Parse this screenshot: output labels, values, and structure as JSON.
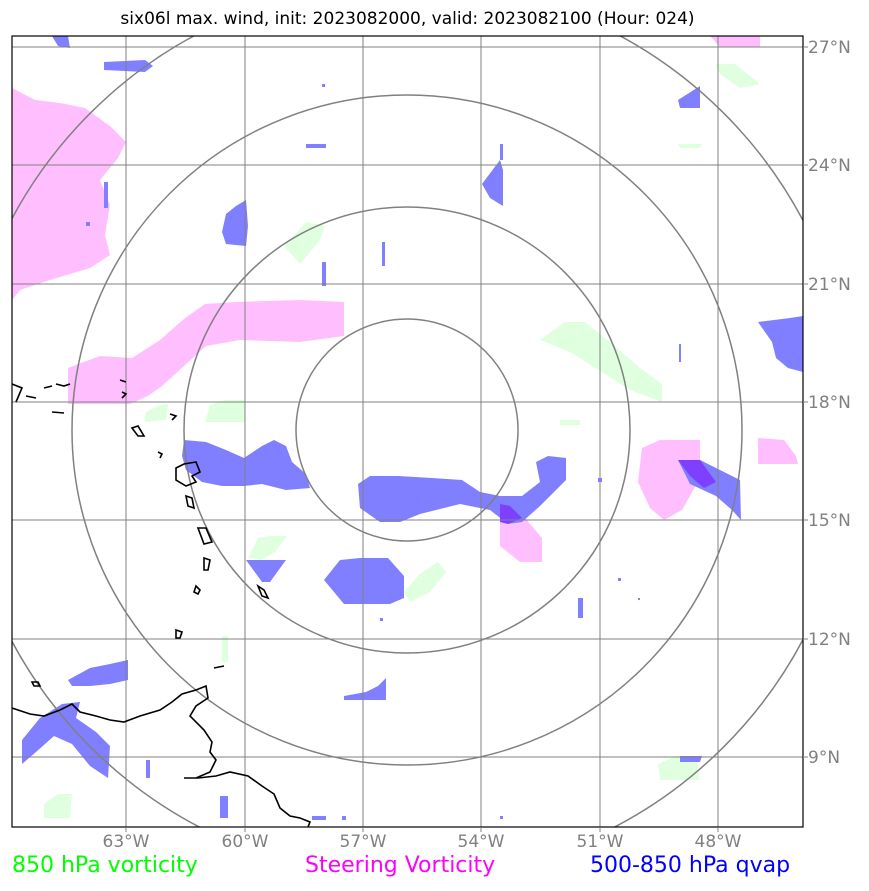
{
  "title": "six06l max. wind, init: 2023082000, valid: 2023082100 (Hour: 024)",
  "lat_ticks": [
    "27°N",
    "24°N",
    "21°N",
    "18°N",
    "15°N",
    "12°N",
    "9°N"
  ],
  "lon_ticks": [
    "63°W",
    "60°W",
    "57°W",
    "54°W",
    "51°W",
    "48°W"
  ],
  "legend": [
    {
      "label": "850 hPa vorticity",
      "color": "#00ff00"
    },
    {
      "label": "Steering Vorticity",
      "color": "#ff00ff"
    },
    {
      "label": "500-850 hPa qvap",
      "color": "#0000ff"
    }
  ],
  "colors": {
    "frame": "#000000",
    "grid": "#808080",
    "range_rings": "#808080",
    "coastline": "#000000",
    "vorticity_850_fill": "#dfffdf",
    "steering_vorticity_fill": "#ffbfff",
    "qvap_fill": "#7f7fff"
  }
}
